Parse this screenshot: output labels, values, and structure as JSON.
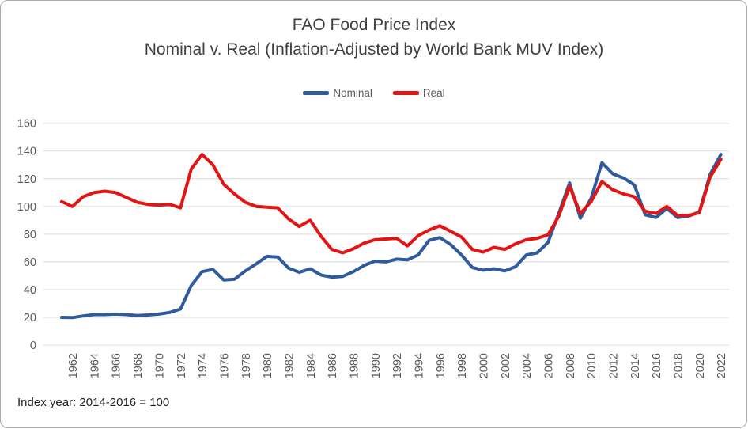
{
  "chart": {
    "title_line1": "FAO Food Price Index",
    "title_line2": "Nominal v. Real (Inflation-Adjusted by World Bank MUV Index)",
    "footnote": "Index year: 2014-2016 = 100"
  },
  "chart_data": {
    "type": "line",
    "title": "FAO Food Price Index",
    "subtitle": "Nominal v. Real (Inflation-Adjusted by World Bank MUV Index)",
    "footnote": "Index year: 2014-2016 = 100",
    "legend_position": "top",
    "grid": "horizontal",
    "ylim": [
      0,
      160
    ],
    "ytick_step": 20,
    "x": [
      1961,
      1962,
      1963,
      1964,
      1965,
      1966,
      1967,
      1968,
      1969,
      1970,
      1971,
      1972,
      1973,
      1974,
      1975,
      1976,
      1977,
      1978,
      1979,
      1980,
      1981,
      1982,
      1983,
      1984,
      1985,
      1986,
      1987,
      1988,
      1989,
      1990,
      1991,
      1992,
      1993,
      1994,
      1995,
      1996,
      1997,
      1998,
      1999,
      2000,
      2001,
      2002,
      2003,
      2004,
      2005,
      2006,
      2007,
      2008,
      2009,
      2010,
      2011,
      2012,
      2013,
      2014,
      2015,
      2016,
      2017,
      2018,
      2019,
      2020,
      2021,
      2022
    ],
    "xtick_labels": [
      "1962",
      "1964",
      "1966",
      "1968",
      "1970",
      "1972",
      "1974",
      "1976",
      "1978",
      "1980",
      "1982",
      "1984",
      "1986",
      "1988",
      "1990",
      "1992",
      "1994",
      "1996",
      "1998",
      "2000",
      "2002",
      "2004",
      "2006",
      "2008",
      "2010",
      "2012",
      "2014",
      "2016",
      "2018",
      "2020",
      "2022"
    ],
    "series": [
      {
        "name": "Nominal",
        "color": "#2F5B9D",
        "values": [
          20,
          19.8,
          21,
          22,
          22,
          22.3,
          22,
          21.3,
          21.7,
          22.3,
          23.5,
          26,
          43,
          53,
          54.5,
          47,
          47.5,
          53.5,
          58.5,
          64,
          63.5,
          55.5,
          52.5,
          55,
          50.5,
          49,
          49.5,
          53,
          57.5,
          60.5,
          60,
          62,
          61.5,
          65,
          75.5,
          77.5,
          72.5,
          65,
          56,
          54,
          55,
          53.5,
          56.5,
          65,
          66.5,
          74,
          95,
          117,
          91.5,
          106,
          131.5,
          123.5,
          120.5,
          115.5,
          94,
          92,
          98.5,
          92,
          93,
          96,
          123,
          137.5
        ]
      },
      {
        "name": "Real",
        "color": "#E31414",
        "values": [
          103.5,
          100,
          107,
          110,
          111,
          110,
          106.5,
          103,
          101.5,
          101,
          101.5,
          99,
          127,
          137.5,
          130,
          116,
          109,
          103,
          100,
          99.5,
          99,
          91,
          85.5,
          90,
          78.5,
          69,
          66.5,
          69.5,
          73.5,
          76,
          76.5,
          77,
          71.5,
          79,
          83,
          86,
          82,
          78,
          69,
          67,
          70.5,
          69,
          73,
          76,
          77,
          79.5,
          93,
          114.5,
          95,
          103.5,
          118,
          112,
          109,
          107,
          96.5,
          95,
          100,
          93.5,
          93.5,
          95.5,
          121,
          134
        ]
      }
    ],
    "colors": {
      "gridline": "#D9D9D9",
      "axis_text": "#595959",
      "title_text": "#3F3F3F"
    }
  }
}
